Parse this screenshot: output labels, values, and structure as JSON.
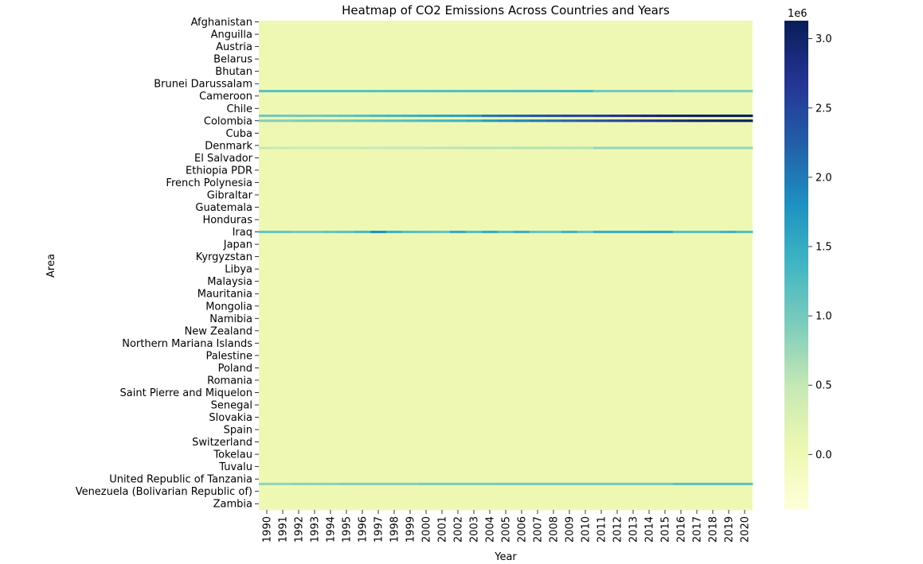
{
  "chart_data": {
    "type": "heatmap",
    "title": "Heatmap of CO2 Emissions Across Countries and Years",
    "xlabel": "Year",
    "ylabel": "Area",
    "x": [
      "1990",
      "1991",
      "1992",
      "1993",
      "1994",
      "1995",
      "1996",
      "1997",
      "1998",
      "1999",
      "2000",
      "2001",
      "2002",
      "2003",
      "2004",
      "2005",
      "2006",
      "2007",
      "2008",
      "2009",
      "2010",
      "2011",
      "2012",
      "2013",
      "2014",
      "2015",
      "2016",
      "2017",
      "2018",
      "2019",
      "2020"
    ],
    "y_tick_labels": [
      "Afghanistan",
      "Anguilla",
      "Austria",
      "Belarus",
      "Bhutan",
      "Brunei Darussalam",
      "Cameroon",
      "Chile",
      "Colombia",
      "Cuba",
      "Denmark",
      "El Salvador",
      "Ethiopia PDR",
      "French Polynesia",
      "Gibraltar",
      "Guatemala",
      "Honduras",
      "Iraq",
      "Japan",
      "Kyrgyzstan",
      "Libya",
      "Malaysia",
      "Mauritania",
      "Mongolia",
      "Namibia",
      "New Zealand",
      "Northern Mariana Islands",
      "Palestine",
      "Poland",
      "Romania",
      "Saint Pierre and Miquelon",
      "Senegal",
      "Slovakia",
      "Spain",
      "Switzerland",
      "Tokelau",
      "Tuvalu",
      "United Republic of Tanzania",
      "Venezuela (Bolivarian Republic of)",
      "Zambia"
    ],
    "rows_per_tick": 5,
    "n_rows": 198,
    "baseline_value": 20000,
    "highlight_rows": [
      {
        "row": 28,
        "values": [
          1150000,
          1150000,
          1150000,
          1150000,
          1150000,
          1150000,
          1160000,
          1160000,
          1170000,
          1180000,
          1200000,
          1200000,
          1200000,
          1220000,
          1230000,
          1240000,
          1250000,
          1260000,
          1270000,
          1290000,
          1310000,
          1000000,
          1000000,
          1000000,
          1000000,
          1000000,
          900000,
          900000,
          900000,
          900000,
          900000
        ]
      },
      {
        "row": 38,
        "values": [
          1000000,
          1000000,
          1000000,
          1000000,
          1050000,
          1100000,
          1200000,
          1300000,
          1350000,
          1400000,
          1500000,
          1550000,
          1600000,
          1700000,
          2000000,
          2100000,
          2200000,
          2300000,
          2400000,
          2500000,
          2500000,
          2600000,
          2700000,
          2800000,
          2900000,
          3000000,
          3000000,
          3050000,
          3050000,
          3100000,
          3100000
        ]
      },
      {
        "row": 40,
        "values": [
          900000,
          900000,
          950000,
          1000000,
          1000000,
          1050000,
          1100000,
          1150000,
          1200000,
          1250000,
          1300000,
          1350000,
          1400000,
          1500000,
          1700000,
          1800000,
          1900000,
          2000000,
          2100000,
          2200000,
          2300000,
          2400000,
          2500000,
          2600000,
          2700000,
          2800000,
          2900000,
          3000000,
          3050000,
          3100000,
          3100000
        ]
      },
      {
        "row": 51,
        "values": [
          480000,
          480000,
          450000,
          450000,
          460000,
          470000,
          480000,
          490000,
          500000,
          500000,
          520000,
          530000,
          540000,
          550000,
          560000,
          570000,
          580000,
          580000,
          590000,
          590000,
          600000,
          800000,
          800000,
          800000,
          800000,
          800000,
          800000,
          800000,
          800000,
          800000,
          800000
        ]
      },
      {
        "row": 85,
        "values": [
          1100000,
          1100000,
          1000000,
          1000000,
          1100000,
          1150000,
          1300000,
          1800000,
          1400000,
          1200000,
          1150000,
          1100000,
          1500000,
          1200000,
          1500000,
          1200000,
          1450000,
          1100000,
          1100000,
          1400000,
          1100000,
          1450000,
          1450000,
          1450000,
          1550000,
          1550000,
          1200000,
          1200000,
          1200000,
          1400000,
          1200000
        ]
      },
      {
        "row": 187,
        "values": [
          800000,
          800000,
          850000,
          850000,
          850000,
          900000,
          900000,
          900000,
          900000,
          900000,
          950000,
          950000,
          950000,
          950000,
          950000,
          1000000,
          1000000,
          1000000,
          1000000,
          1000000,
          1000000,
          1000000,
          1000000,
          1000000,
          1000000,
          1000000,
          1150000,
          1150000,
          1150000,
          1150000,
          1150000
        ]
      }
    ],
    "colorbar": {
      "colormap": "YlGnBu",
      "vmin": -400000,
      "vmax": 3130000,
      "ticks": [
        "0.0",
        "0.5",
        "1.0",
        "1.5",
        "2.0",
        "2.5",
        "3.0"
      ],
      "tick_values": [
        0,
        500000,
        1000000,
        1500000,
        2000000,
        2500000,
        3000000
      ],
      "offset_label": "1e6"
    }
  }
}
